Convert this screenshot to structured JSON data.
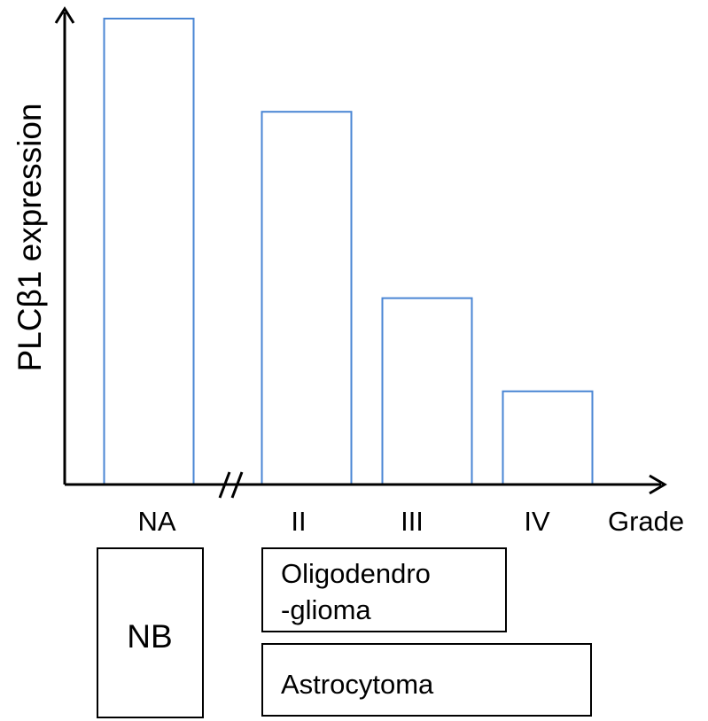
{
  "chart_data": {
    "type": "bar",
    "categories": [
      "NA",
      "II",
      "III",
      "IV"
    ],
    "values": [
      100,
      80,
      40,
      20
    ],
    "ylim": [
      0,
      100
    ],
    "ylabel": "PLCβ1 expression",
    "xlabel": "Grade",
    "grid": false,
    "axis_break": "//",
    "bar_color": "#4a86d4",
    "annotations": {
      "nb": "NB",
      "oligo": [
        "Oligodendro",
        "-glioma"
      ],
      "astro": "Astrocytoma"
    }
  }
}
